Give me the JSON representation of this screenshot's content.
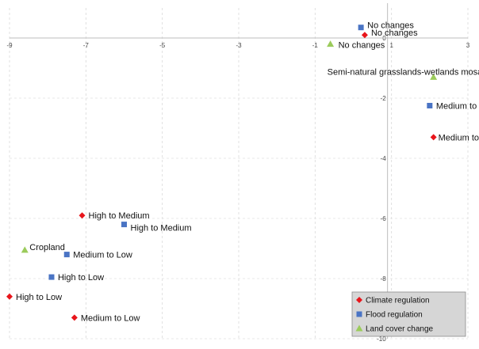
{
  "chart_data": {
    "type": "scatter",
    "title": "",
    "xlabel": "",
    "ylabel": "",
    "xlim": [
      -9,
      3
    ],
    "ylim": [
      -10,
      1
    ],
    "x_ticks": [
      -9,
      -7,
      -5,
      -3,
      -1,
      1,
      3
    ],
    "y_ticks": [
      0,
      -2,
      -4,
      -6,
      -8,
      -10
    ],
    "grid": "vertical and horizontal dashed",
    "legend_position": "bottom-right",
    "series": [
      {
        "name": "Climate regulation",
        "marker": "diamond",
        "color": "#e8151b",
        "points": [
          {
            "x": 0.3,
            "y": 0.1,
            "label": "No changes"
          },
          {
            "x": 2.1,
            "y": -3.3,
            "label": "Medium to High"
          },
          {
            "x": -7.1,
            "y": -5.9,
            "label": "High to Medium"
          },
          {
            "x": -9.0,
            "y": -8.6,
            "label": "High to Low"
          },
          {
            "x": -7.3,
            "y": -9.3,
            "label": "Medium to Low"
          }
        ]
      },
      {
        "name": "Flood regulation",
        "marker": "square",
        "color": "#4a74c4",
        "points": [
          {
            "x": 0.2,
            "y": 0.35,
            "label": "No changes"
          },
          {
            "x": 2.0,
            "y": -2.25,
            "label": "Medium to High"
          },
          {
            "x": -6.0,
            "y": -6.2,
            "label": "High to Medium"
          },
          {
            "x": -7.5,
            "y": -7.2,
            "label": "Medium to Low"
          },
          {
            "x": -7.9,
            "y": -7.95,
            "label": "High to Low"
          }
        ]
      },
      {
        "name": "Land cover change",
        "marker": "triangle",
        "color": "#9bcb5b",
        "points": [
          {
            "x": -0.6,
            "y": -0.2,
            "label": "No changes"
          },
          {
            "x": 2.1,
            "y": -1.3,
            "label": "Semi-natural grasslands-wetlands mosaics"
          },
          {
            "x": -8.6,
            "y": -7.05,
            "label": "Cropland"
          }
        ]
      }
    ]
  }
}
